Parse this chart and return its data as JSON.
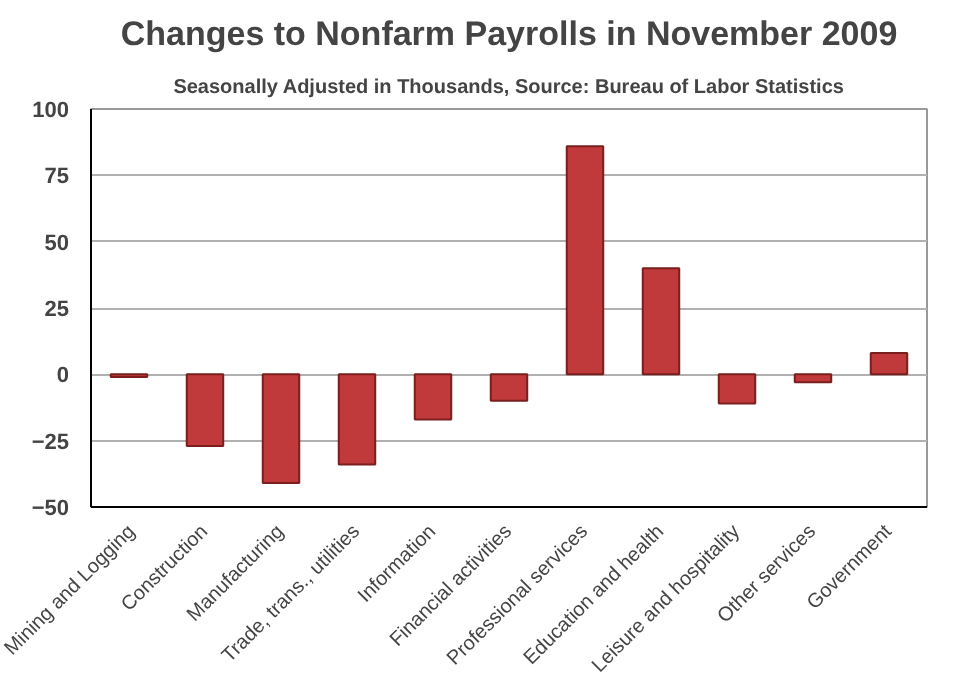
{
  "chart_data": {
    "type": "bar",
    "title": "Changes to Nonfarm Payrolls in November 2009",
    "subtitle": "Seasonally Adjusted in Thousands, Source: Bureau of Labor Statistics",
    "categories": [
      "Mining and Logging",
      "Construction",
      "Manufacturing",
      "Trade, trans., utilities",
      "Information",
      "Financial activities",
      "Professional services",
      "Education and health",
      "Leisure and hospitality",
      "Other services",
      "Government"
    ],
    "values": [
      -1,
      -27,
      -41,
      -34,
      -17,
      -10,
      86,
      40,
      -11,
      -3,
      8
    ],
    "color": "#c0393b",
    "ylim": [
      -50,
      100
    ],
    "yticks": [
      -50,
      -25,
      0,
      25,
      50,
      75,
      100
    ],
    "grid": "y"
  }
}
